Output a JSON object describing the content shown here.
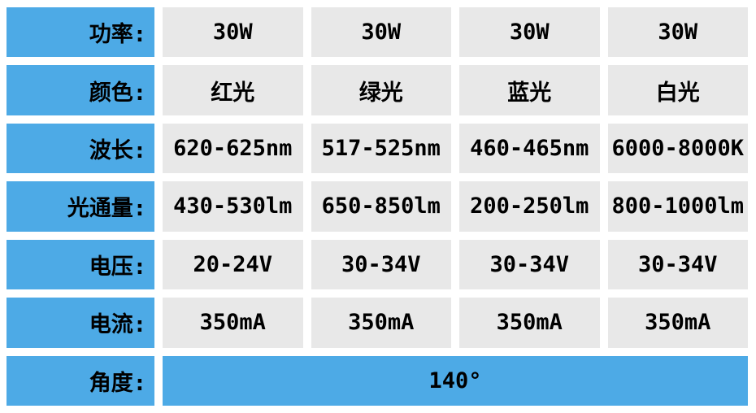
{
  "chart_data": {
    "type": "table",
    "title": "LED specification table (Chinese product sheet)",
    "column_count": 5,
    "rows": [
      {
        "name": "power",
        "label": "功率:",
        "values": [
          "30W",
          "30W",
          "30W",
          "30W"
        ]
      },
      {
        "name": "color",
        "label": "颜色:",
        "values": [
          "红光",
          "绿光",
          "蓝光",
          "白光"
        ]
      },
      {
        "name": "wavelength",
        "label": "波长:",
        "values": [
          "620-625nm",
          "517-525nm",
          "460-465nm",
          "6000-8000K"
        ]
      },
      {
        "name": "luminous-flux",
        "label": "光通量:",
        "values": [
          "430-530lm",
          "650-850lm",
          "200-250lm",
          "800-1000lm"
        ]
      },
      {
        "name": "voltage",
        "label": "电压:",
        "values": [
          "20-24V",
          "30-34V",
          "30-34V",
          "30-34V"
        ]
      },
      {
        "name": "current",
        "label": "电流:",
        "values": [
          "350mA",
          "350mA",
          "350mA",
          "350mA"
        ]
      },
      {
        "name": "angle",
        "label": "角度:",
        "values": [
          "140°"
        ],
        "merged": true
      }
    ],
    "layout": {
      "label_column": "left, right-aligned text",
      "value_columns": 4,
      "last_row_value_spans_all_columns": true,
      "grid": "flat cells separated by white gaps, no borders"
    }
  },
  "colors": {
    "label_bg": "#4DAAE6",
    "value_bg": "#E8E8E8",
    "merged_value_bg": "#4DAAE6",
    "text": "#000000",
    "background": "#FFFFFF"
  }
}
